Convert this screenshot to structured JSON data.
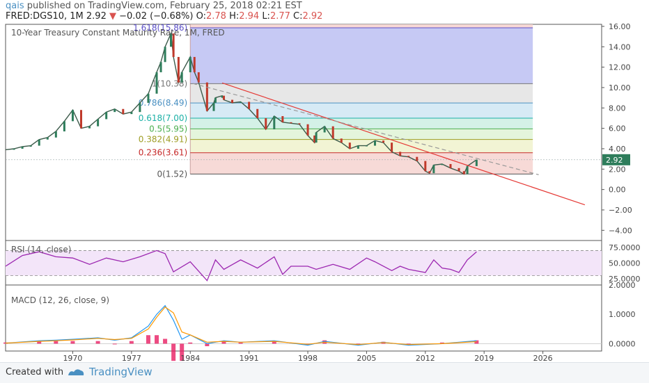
{
  "header": {
    "user": "qais",
    "published": "published on TradingView.com, February 25, 2018 02:21 EST",
    "symbol": "FRED:DGS10, 1M",
    "last": "2.92",
    "change": "−0.02 (−0.68%)",
    "o_label": "O:",
    "o": "2.78",
    "h_label": "H:",
    "h": "2.94",
    "l_label": "L:",
    "l": "2.77",
    "c_label": "C:",
    "c": "2.92"
  },
  "footer": {
    "created_with": "Created with",
    "brand": "TradingView"
  },
  "chart_data": [
    {
      "type": "line",
      "title": "10-Year Treasury Constant Maturity Rate, 1M, FRED",
      "price_label": "2.92",
      "y_ticks": [
        "16.00",
        "14.00",
        "12.00",
        "10.00",
        "8.00",
        "6.00",
        "4.00",
        "2.00",
        "0.00",
        "−2.00",
        "−4.00"
      ],
      "y_tick_values": [
        16,
        14,
        12,
        10,
        8,
        6,
        4,
        2,
        0,
        -2,
        -4
      ],
      "ylim": [
        -5,
        16.2
      ],
      "x_ticks": [
        "1970",
        "1977",
        "1984",
        "1991",
        "1998",
        "2005",
        "2012",
        "2019",
        "2026"
      ],
      "x_tick_values": [
        1970,
        1977,
        1984,
        1991,
        1998,
        2005,
        2012,
        2019,
        2026
      ],
      "xlim": [
        1962,
        2033
      ],
      "colors": {
        "fib_line_1618": "#6a5acd",
        "trend": "#e53935",
        "candle_up": "#2e7d5b",
        "candle_down": "#c0392b"
      },
      "fib_levels": [
        {
          "label": "1.618(15.86)",
          "value": 15.86,
          "color": "#5b4fc8",
          "fill": "#bcc0f2"
        },
        {
          "label": "1(10.38)",
          "value": 10.38,
          "color": "#777777",
          "fill": "#e3e3e3"
        },
        {
          "label": "0.786(8.49)",
          "value": 8.49,
          "color": "#4a90c2",
          "fill": "#cfe6f3"
        },
        {
          "label": "0.618(7.00)",
          "value": 7.0,
          "color": "#1bb0a6",
          "fill": "#cdeee3"
        },
        {
          "label": "0.5(5.95)",
          "value": 5.95,
          "color": "#4caf50",
          "fill": "#dff3d6"
        },
        {
          "label": "0.382(4.91)",
          "value": 4.91,
          "color": "#9e9d24",
          "fill": "#f0f2cd"
        },
        {
          "label": "0.236(3.61)",
          "value": 3.61,
          "color": "#c62828",
          "fill": "#f6d4d0"
        },
        {
          "label": "0(1.52)",
          "value": 1.52,
          "color": "#555555",
          "fill": null
        }
      ],
      "fib_x_range": [
        1984.0,
        2024.8
      ],
      "top_band_fill": "#f6d4d0",
      "series": {
        "x": [
          1962,
          1963,
          1964,
          1965,
          1966,
          1967,
          1968,
          1969,
          1970,
          1971,
          1972,
          1973,
          1974,
          1975,
          1976,
          1977,
          1978,
          1979,
          1980,
          1980.5,
          1981,
          1981.7,
          1982,
          1982.6,
          1983,
          1984,
          1984.5,
          1985,
          1986,
          1986.8,
          1987,
          1987.8,
          1988,
          1989,
          1990,
          1991,
          1992,
          1993,
          1994,
          1995,
          1996,
          1997,
          1998,
          1998.8,
          1999,
          2000,
          2001,
          2002,
          2003,
          2004,
          2005,
          2006,
          2007,
          2008,
          2009,
          2010,
          2011,
          2012,
          2012.5,
          2013,
          2014,
          2015,
          2016,
          2016.6,
          2017,
          2018.1
        ],
        "y": [
          3.9,
          4.0,
          4.2,
          4.3,
          4.9,
          5.1,
          5.7,
          6.7,
          7.8,
          6.0,
          6.2,
          6.9,
          7.6,
          7.9,
          7.4,
          7.6,
          8.5,
          9.4,
          11.5,
          12.5,
          14.0,
          15.3,
          13.0,
          10.5,
          11.5,
          13.0,
          11.5,
          10.5,
          7.7,
          8.5,
          9.0,
          9.2,
          8.8,
          8.5,
          8.6,
          7.9,
          7.0,
          5.9,
          7.2,
          6.6,
          6.5,
          6.4,
          5.3,
          4.6,
          5.6,
          6.2,
          5.0,
          4.6,
          4.0,
          4.3,
          4.3,
          4.8,
          4.6,
          3.7,
          3.3,
          3.2,
          2.8,
          1.8,
          1.6,
          2.4,
          2.5,
          2.1,
          1.8,
          1.5,
          2.3,
          2.92
        ]
      },
      "trendlines": [
        {
          "style": "solid",
          "from": [
            1987.8,
            10.45
          ],
          "to": [
            2031.0,
            -1.5
          ],
          "color": "#e53935"
        },
        {
          "style": "dashed",
          "from": [
            1984.3,
            10.4
          ],
          "to": [
            2025.5,
            1.45
          ],
          "color": "#999999"
        }
      ]
    },
    {
      "type": "line",
      "title": "RSI (14, close)",
      "y_ticks": [
        "75.0000",
        "50.0000",
        "25.0000"
      ],
      "y_tick_values": [
        75,
        50,
        25
      ],
      "ylim": [
        15,
        86
      ],
      "band": [
        30,
        70
      ],
      "colors": {
        "line": "#9c27b0",
        "band": "#f3e5f9"
      },
      "series": {
        "x": [
          1962,
          1964,
          1966,
          1968,
          1970,
          1972,
          1974,
          1976,
          1978,
          1980,
          1981,
          1982,
          1984,
          1986,
          1987,
          1988,
          1990,
          1992,
          1994,
          1995,
          1996,
          1998,
          1999,
          2001,
          2003,
          2005,
          2006,
          2008,
          2009,
          2010,
          2012,
          2013,
          2014,
          2015,
          2016,
          2017,
          2018.1
        ],
        "y": [
          45,
          62,
          68,
          60,
          58,
          48,
          58,
          52,
          60,
          70,
          65,
          36,
          52,
          22,
          55,
          40,
          55,
          42,
          60,
          32,
          45,
          45,
          40,
          48,
          40,
          58,
          52,
          38,
          45,
          40,
          35,
          55,
          42,
          40,
          35,
          55,
          68
        ]
      }
    },
    {
      "type": "line",
      "title": "MACD (12, 26, close, 9)",
      "y_ticks": [
        "2.0000",
        "1.0000",
        "0.0000"
      ],
      "y_tick_values": [
        2,
        1,
        0
      ],
      "ylim": [
        -0.25,
        2.0
      ],
      "colors": {
        "macd": "#2196f3",
        "signal": "#ff9800",
        "hist": "#e91e63"
      },
      "series": [
        {
          "name": "",
          "x": [
            1962,
            1966,
            1968,
            1970,
            1973,
            1975,
            1977,
            1979,
            1980,
            1981,
            1982,
            1983,
            1984,
            1986,
            1988,
            1990,
            1994,
            1998,
            2000,
            2004,
            2007,
            2010,
            2014,
            2018.1
          ],
          "y": [
            0.02,
            0.1,
            0.12,
            0.15,
            0.2,
            0.12,
            0.2,
            0.6,
            1.0,
            1.3,
            0.8,
            0.15,
            0.3,
            0.0,
            0.1,
            0.05,
            0.1,
            -0.05,
            0.08,
            -0.05,
            0.05,
            -0.05,
            0.0,
            0.1
          ]
        },
        {
          "name": "",
          "x": [
            1962,
            1966,
            1968,
            1970,
            1973,
            1975,
            1977,
            1979,
            1980,
            1981,
            1982,
            1983,
            1984,
            1986,
            1988,
            1990,
            1994,
            1998,
            2000,
            2004,
            2007,
            2010,
            2014,
            2018.1
          ],
          "y": [
            0.02,
            0.08,
            0.1,
            0.13,
            0.18,
            0.14,
            0.18,
            0.5,
            0.9,
            1.25,
            1.05,
            0.4,
            0.3,
            0.05,
            0.08,
            0.05,
            0.08,
            -0.02,
            0.05,
            -0.03,
            0.04,
            -0.03,
            0.0,
            0.07
          ]
        }
      ]
    }
  ]
}
